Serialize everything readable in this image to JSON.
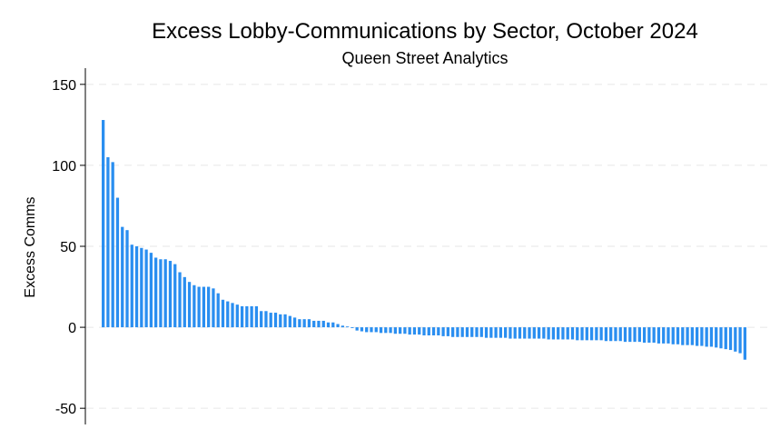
{
  "chart_data": {
    "type": "bar",
    "title": "Excess Lobby-Communications by Sector, October 2024",
    "subtitle": "Queen Street Analytics",
    "xlabel": "",
    "ylabel": "Excess Comms",
    "ylim": [
      -60,
      160
    ],
    "y_ticks": [
      150,
      100,
      50,
      0,
      -50
    ],
    "y_tick_labels": [
      "150",
      "100",
      "50",
      "0",
      "-50"
    ],
    "grid": "horizontal dashed",
    "colors": {
      "bar": "#2a8ef0",
      "grid": "#e6e6e6",
      "axis": "#000000"
    },
    "values": [
      128,
      105,
      102,
      80,
      62,
      60,
      51,
      50,
      49,
      48,
      46,
      43,
      42,
      42,
      41,
      39,
      34,
      31,
      28,
      26,
      25,
      25,
      25,
      24,
      21,
      17,
      16,
      15,
      14,
      13,
      13,
      13,
      13,
      10,
      10,
      9,
      9,
      8,
      8,
      7,
      6,
      5,
      5,
      5,
      4,
      4,
      4,
      3,
      3,
      2,
      1,
      0.5,
      -0.5,
      -2,
      -2.5,
      -3,
      -3,
      -3,
      -3.5,
      -3.5,
      -3.5,
      -4,
      -4,
      -4,
      -4.5,
      -4.5,
      -4.5,
      -5,
      -5,
      -5,
      -5,
      -5.5,
      -5.5,
      -6,
      -6,
      -6,
      -6,
      -6,
      -6,
      -6,
      -6.5,
      -6.5,
      -6.5,
      -6.5,
      -6.5,
      -7,
      -7,
      -7,
      -7,
      -7,
      -7,
      -7,
      -7,
      -7.5,
      -7.5,
      -7.5,
      -7.5,
      -7.5,
      -7.5,
      -8,
      -8,
      -8,
      -8,
      -8,
      -8,
      -8.5,
      -8.5,
      -8.5,
      -8.5,
      -9,
      -9,
      -9,
      -9,
      -9.5,
      -9.5,
      -9.5,
      -10,
      -10,
      -10,
      -10.5,
      -10.5,
      -11,
      -11,
      -11,
      -11.5,
      -11.5,
      -12,
      -12,
      -12.5,
      -13,
      -13.5,
      -14,
      -15,
      -16,
      -20
    ]
  }
}
